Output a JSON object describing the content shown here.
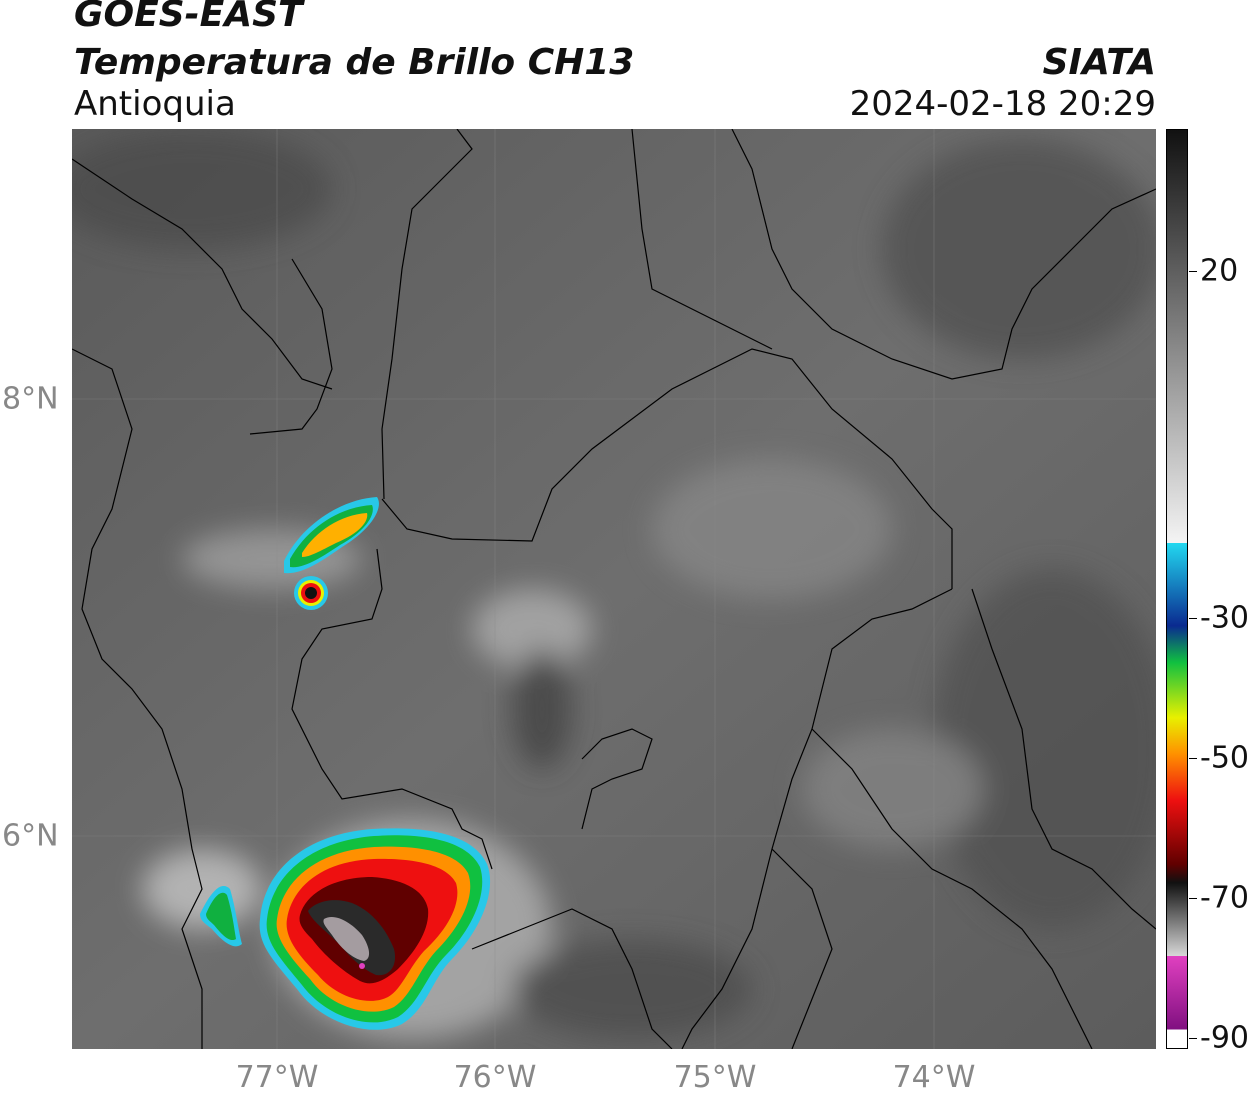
{
  "header": {
    "satellite": "GOES-EAST",
    "product": "Temperatura de Brillo CH13",
    "region": "Antioquia",
    "organization": "SIATA",
    "datetime": "2024-02-18 20:29"
  },
  "map": {
    "lon_ticks": [
      "77°W",
      "76°W",
      "75°W",
      "74°W"
    ],
    "lat_ticks": [
      "8°N",
      "6°N"
    ]
  },
  "colorbar": {
    "labels": [
      "20",
      "-30",
      "-50",
      "-70",
      "-90"
    ],
    "colors": {
      "warm_top": "#111111",
      "warm_bottom": "#f4f4f4",
      "cyan": "#22d8f0",
      "blue": "#0a2a90",
      "green": "#10c040",
      "yellow": "#e8f000",
      "orange": "#ff9000",
      "red": "#ee1010",
      "darkred": "#600000",
      "magenta": "#e040c0",
      "purple": "#801080"
    }
  }
}
